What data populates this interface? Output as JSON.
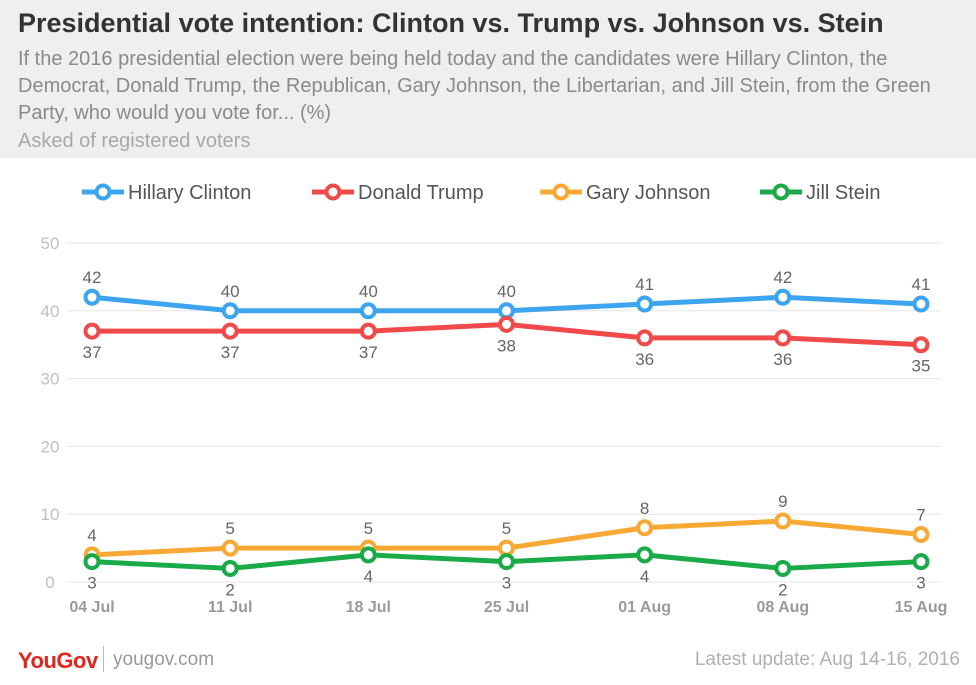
{
  "header": {
    "title": "Presidential vote intention: Clinton vs. Trump vs. Johnson vs. Stein",
    "subtitle": "If the 2016 presidential election were being held today and the candidates were Hillary Clinton, the Democrat, Donald Trump, the Republican, Gary Johnson, the Libertarian, and Jill Stein, from the Green Party, who would you vote for... (%)",
    "note": "Asked of registered voters"
  },
  "footer": {
    "logo": "YouGov",
    "site": "yougov.com",
    "update": "Latest update: Aug 14-16, 2016"
  },
  "chart_data": {
    "type": "line",
    "categories": [
      "04 Jul",
      "11 Jul",
      "18 Jul",
      "25 Jul",
      "01 Aug",
      "08 Aug",
      "15 Aug"
    ],
    "ylim": [
      0,
      50
    ],
    "yticks": [
      0,
      10,
      20,
      30,
      40,
      50
    ],
    "grid": true,
    "legend_position": "top",
    "series": [
      {
        "name": "Hillary Clinton",
        "color": "#3da4ef",
        "values": [
          42,
          40,
          40,
          40,
          41,
          42,
          41
        ],
        "label_position": "above"
      },
      {
        "name": "Donald Trump",
        "color": "#f14a4a",
        "values": [
          37,
          37,
          37,
          38,
          36,
          36,
          35
        ],
        "label_position": "below"
      },
      {
        "name": "Gary Johnson",
        "color": "#f8a935",
        "values": [
          4,
          5,
          5,
          5,
          8,
          9,
          7
        ],
        "label_position": "above"
      },
      {
        "name": "Jill Stein",
        "color": "#1aaa48",
        "values": [
          3,
          2,
          4,
          3,
          4,
          2,
          3
        ],
        "label_position": "below"
      }
    ]
  }
}
